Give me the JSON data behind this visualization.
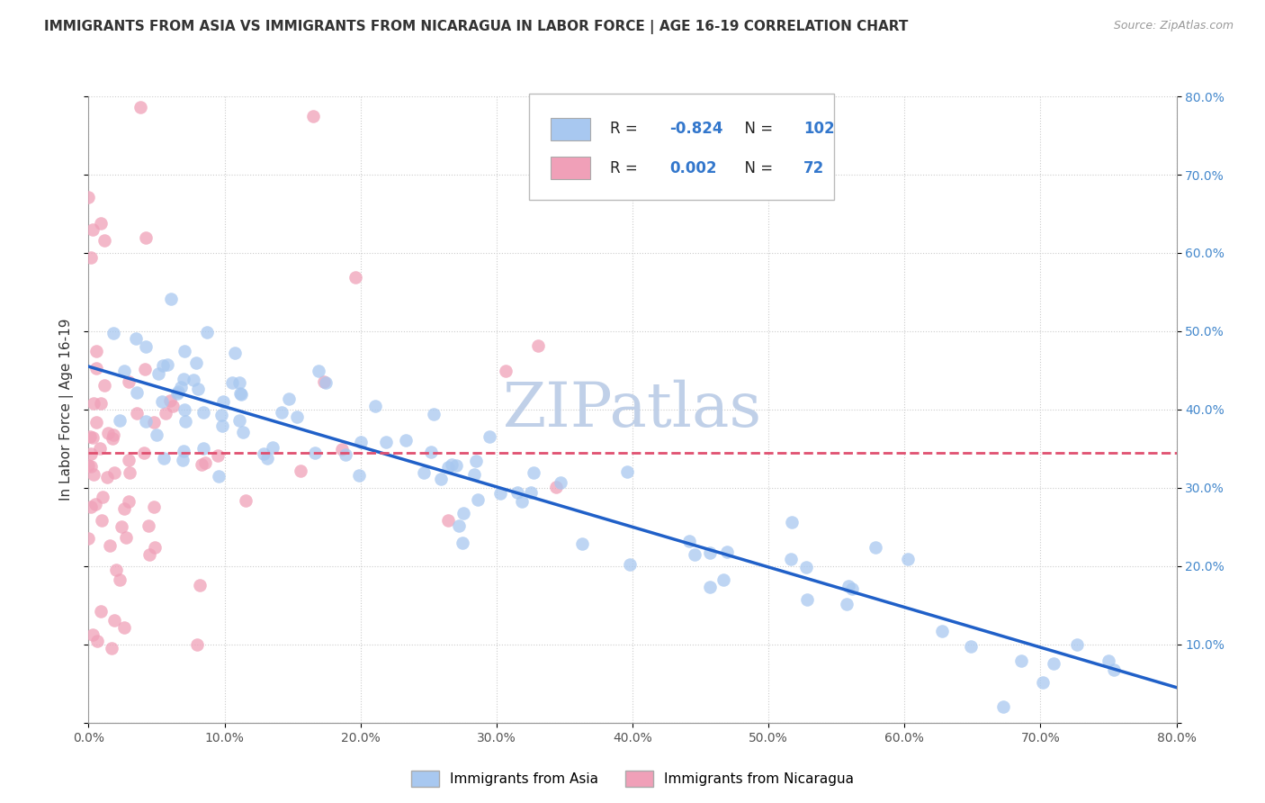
{
  "title": "IMMIGRANTS FROM ASIA VS IMMIGRANTS FROM NICARAGUA IN LABOR FORCE | AGE 16-19 CORRELATION CHART",
  "source": "Source: ZipAtlas.com",
  "ylabel": "In Labor Force | Age 16-19",
  "xlim": [
    0.0,
    0.8
  ],
  "ylim": [
    0.0,
    0.8
  ],
  "xticks": [
    0.0,
    0.1,
    0.2,
    0.3,
    0.4,
    0.5,
    0.6,
    0.7,
    0.8
  ],
  "xticklabels": [
    "0.0%",
    "10.0%",
    "20.0%",
    "30.0%",
    "40.0%",
    "50.0%",
    "60.0%",
    "70.0%",
    "80.0%"
  ],
  "yticks": [
    0.0,
    0.1,
    0.2,
    0.3,
    0.4,
    0.5,
    0.6,
    0.7,
    0.8
  ],
  "left_yticklabels": [
    "",
    "",
    "",
    "",
    "",
    "",
    "",
    "",
    ""
  ],
  "right_yticklabels": [
    "",
    "10.0%",
    "20.0%",
    "30.0%",
    "40.0%",
    "50.0%",
    "60.0%",
    "70.0%",
    "80.0%"
  ],
  "legend_R_asia": "-0.824",
  "legend_N_asia": "102",
  "legend_R_nicaragua": "0.002",
  "legend_N_nicaragua": "72",
  "color_asia": "#a8c8f0",
  "color_nicaragua": "#f0a0b8",
  "trendline_asia": "#2060c8",
  "trendline_nicaragua": "#e05070",
  "watermark": "ZIPatlas",
  "watermark_color": "#c0d0e8",
  "asia_trend_x": [
    0.0,
    0.8
  ],
  "asia_trend_y": [
    0.455,
    0.045
  ],
  "nicaragua_trend_x": [
    0.0,
    0.8
  ],
  "nicaragua_trend_y": [
    0.345,
    0.345
  ]
}
